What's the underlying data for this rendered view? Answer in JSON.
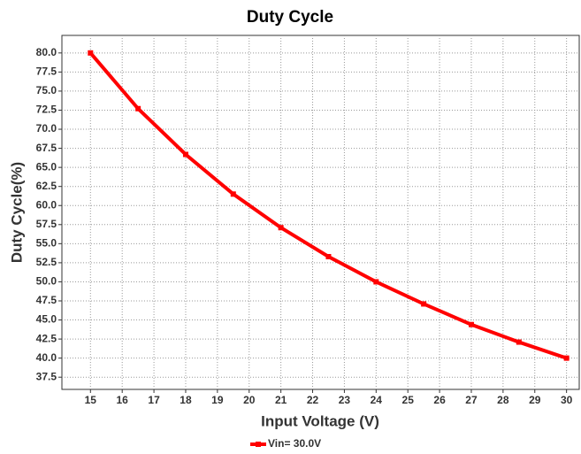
{
  "chart_data": {
    "type": "line",
    "title": "Duty Cycle",
    "x_label": "Input Voltage (V)",
    "y_label": "Duty Cycle(%)",
    "x": [
      15,
      16.5,
      18,
      19.5,
      21,
      22.5,
      24,
      25.5,
      27,
      28.5,
      30
    ],
    "series": [
      {
        "name": "Vin= 30.0V",
        "color": "#ff0000",
        "values": [
          80,
          72.7,
          66.7,
          61.5,
          57.1,
          53.3,
          50,
          47.1,
          44.4,
          42.1,
          40
        ]
      }
    ],
    "xlim": [
      14.1,
      30.4
    ],
    "xticks": [
      15,
      16,
      17,
      18,
      19,
      20,
      21,
      22,
      23,
      24,
      25,
      26,
      27,
      28,
      29,
      30
    ],
    "ylim": [
      35.9,
      82.3
    ],
    "yticks": [
      37.5,
      {
        "value": 40,
        "label": "40.0"
      },
      42.5,
      {
        "value": 45,
        "label": "45.0"
      },
      47.5,
      {
        "value": 50,
        "label": "50.0"
      },
      52.5,
      {
        "value": 55,
        "label": "55.0"
      },
      57.5,
      {
        "value": 60,
        "label": "60.0"
      },
      62.5,
      {
        "value": 65,
        "label": "65.0"
      },
      67.5,
      {
        "value": 70,
        "label": "70.0"
      },
      72.5,
      {
        "value": 75,
        "label": "75.0"
      },
      77.5,
      {
        "value": 80,
        "label": "80.0"
      }
    ],
    "grid": true,
    "legend": "bottom"
  }
}
